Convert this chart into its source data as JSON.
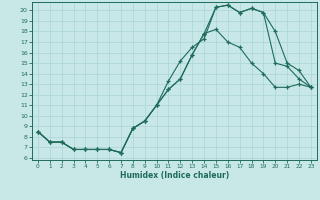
{
  "xlabel": "Humidex (Indice chaleur)",
  "bg_color": "#c8e8e8",
  "line_color": "#1e6b5a",
  "grid_color": "#b0d8d8",
  "xlim": [
    -0.5,
    23.5
  ],
  "ylim": [
    5.8,
    20.8
  ],
  "yticks": [
    6,
    7,
    8,
    9,
    10,
    11,
    12,
    13,
    14,
    15,
    16,
    17,
    18,
    19,
    20
  ],
  "xticks": [
    0,
    1,
    2,
    3,
    4,
    5,
    6,
    7,
    8,
    9,
    10,
    11,
    12,
    13,
    14,
    15,
    16,
    17,
    18,
    19,
    20,
    21,
    22,
    23
  ],
  "line1_x": [
    0,
    1,
    2,
    3,
    4,
    5,
    6,
    7,
    8,
    9,
    10,
    11,
    12,
    13,
    14,
    15,
    16,
    17,
    18,
    19,
    20,
    21,
    22,
    23
  ],
  "line1_y": [
    8.5,
    7.5,
    7.5,
    6.8,
    6.8,
    6.8,
    6.8,
    6.5,
    8.8,
    9.5,
    11.0,
    12.5,
    13.5,
    15.8,
    17.8,
    18.2,
    17.0,
    16.5,
    15.0,
    14.0,
    12.7,
    12.7,
    13.0,
    12.7
  ],
  "line2_x": [
    0,
    1,
    2,
    3,
    4,
    5,
    6,
    7,
    8,
    9,
    10,
    11,
    12,
    13,
    14,
    15,
    16,
    17,
    18,
    19,
    20,
    21,
    22,
    23
  ],
  "line2_y": [
    8.5,
    7.5,
    7.5,
    6.8,
    6.8,
    6.8,
    6.8,
    6.5,
    8.8,
    9.5,
    11.0,
    13.3,
    15.2,
    16.5,
    17.3,
    20.3,
    20.5,
    19.8,
    20.2,
    19.8,
    15.0,
    14.7,
    13.5,
    12.7
  ],
  "line3_x": [
    0,
    1,
    2,
    3,
    4,
    5,
    6,
    7,
    8,
    9,
    10,
    11,
    12,
    13,
    14,
    15,
    16,
    17,
    18,
    19,
    20,
    21,
    22,
    23
  ],
  "line3_y": [
    8.5,
    7.5,
    7.5,
    6.8,
    6.8,
    6.8,
    6.8,
    6.5,
    8.8,
    9.5,
    11.0,
    12.5,
    13.5,
    15.8,
    17.8,
    20.3,
    20.5,
    19.8,
    20.2,
    19.8,
    18.0,
    15.0,
    14.3,
    12.7
  ]
}
